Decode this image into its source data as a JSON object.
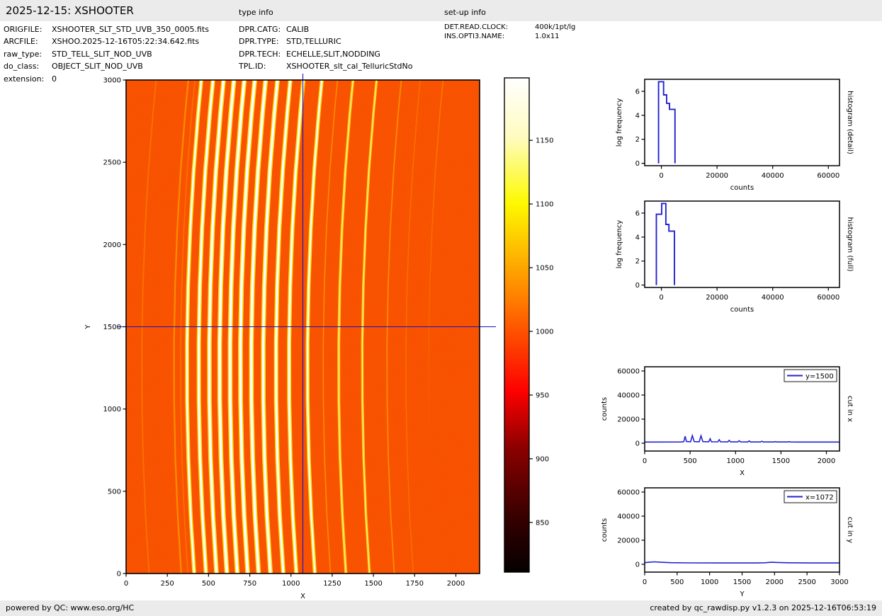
{
  "header": {
    "title": "2025-12-15: XSHOOTER",
    "type_info_heading": "type info",
    "setup_info_heading": "set-up info"
  },
  "file_info": [
    {
      "label": "ORIGFILE:",
      "value": "XSHOOTER_SLT_STD_UVB_350_0005.fits"
    },
    {
      "label": "ARCFILE:",
      "value": "XSHOO.2025-12-16T05:22:34.642.fits"
    },
    {
      "label": "raw_type:",
      "value": "STD_TELL_SLIT_NOD_UVB"
    },
    {
      "label": "do_class:",
      "value": "OBJECT_SLIT_NOD_UVB"
    },
    {
      "label": "extension:",
      "value": "0"
    }
  ],
  "type_info": [
    {
      "label": "DPR.CATG:",
      "value": "CALIB"
    },
    {
      "label": "DPR.TYPE:",
      "value": "STD,TELLURIC"
    },
    {
      "label": "DPR.TECH:",
      "value": "ECHELLE,SLIT,NODDING"
    },
    {
      "label": "TPL.ID:",
      "value": "XSHOOTER_slt_cal_TelluricStdNo"
    }
  ],
  "setup_info": [
    {
      "label": "DET.READ.CLOCK:",
      "value": "400k/1pt/lg"
    },
    {
      "label": "INS.OPTI3.NAME:",
      "value": "1.0x11"
    }
  ],
  "footer": {
    "left": "powered by QC: www.eso.org/HC",
    "right": "created by qc_rawdisp.py v1.2.3 on 2025-12-16T06:53:19"
  },
  "colors": {
    "bar_background": "#ebebeb",
    "curve_blue": "#2323d3",
    "crosshair_blue": "#1414c8",
    "image_background": "#fb4f00",
    "axis_black": "#000000"
  },
  "chart_data": [
    {
      "id": "raw_image",
      "type": "heatmap",
      "xlabel": "X",
      "ylabel": "Y",
      "xlim": [
        0,
        2144
      ],
      "ylim": [
        0,
        3000
      ],
      "xticks": [
        0,
        250,
        500,
        750,
        1000,
        1250,
        1500,
        1750,
        2000
      ],
      "yticks": [
        0,
        500,
        1000,
        1500,
        2000,
        2500,
        3000
      ],
      "colormap": "hot",
      "background_counts": 1000,
      "crosshair": {
        "x": 1072,
        "y": 1500
      },
      "colorbar": {
        "vmin": 811,
        "vmax": 1199,
        "ticks": [
          850,
          900,
          950,
          1000,
          1050,
          1100,
          1150
        ]
      },
      "curvature": {
        "a": 64,
        "vertex_y": 1250
      },
      "orders": [
        {
          "x": 95,
          "w": 2.0,
          "kind": "dim"
        },
        {
          "x": 290,
          "w": 2.2,
          "kind": "faint"
        },
        {
          "x": 330,
          "w": 1.8,
          "kind": "dim"
        },
        {
          "x": 369,
          "w": 2.6,
          "kind": "bright"
        },
        {
          "x": 440,
          "w": 3.2,
          "kind": "bright"
        },
        {
          "x": 504,
          "w": 3.6,
          "kind": "bright"
        },
        {
          "x": 567,
          "w": 3.8,
          "kind": "bright"
        },
        {
          "x": 630,
          "w": 3.8,
          "kind": "bright"
        },
        {
          "x": 693,
          "w": 3.8,
          "kind": "bright"
        },
        {
          "x": 759,
          "w": 3.8,
          "kind": "bright"
        },
        {
          "x": 831,
          "w": 3.6,
          "kind": "bright"
        },
        {
          "x": 909,
          "w": 3.2,
          "kind": "bright"
        },
        {
          "x": 988,
          "w": 3.0,
          "kind": "bright"
        },
        {
          "x": 1100,
          "w": 2.4,
          "kind": "bright"
        },
        {
          "x": 1195,
          "w": 1.6,
          "kind": "faint"
        },
        {
          "x": 1289,
          "w": 2.0,
          "kind": "medium"
        },
        {
          "x": 1432,
          "w": 1.7,
          "kind": "medium"
        },
        {
          "x": 1582,
          "w": 1.8,
          "kind": "faint"
        },
        {
          "x": 1697,
          "w": 1.5,
          "kind": "dim"
        },
        {
          "x": 1835,
          "w": 1.5,
          "kind": "dim-top"
        }
      ]
    },
    {
      "id": "histogram_detail",
      "type": "step",
      "right_label": "histogram (detail)",
      "xlabel": "counts",
      "ylabel": "log frequency",
      "xlim": [
        -6000,
        64000
      ],
      "ylim": [
        -0.2,
        7.0
      ],
      "xticks": [
        0,
        20000,
        40000,
        60000
      ],
      "yticks": [
        0,
        2,
        4,
        6
      ],
      "points": [
        [
          -1000,
          0
        ],
        [
          -1000,
          6.8
        ],
        [
          800,
          6.8
        ],
        [
          800,
          5.7
        ],
        [
          1900,
          5.7
        ],
        [
          1900,
          5.0
        ],
        [
          2900,
          5.0
        ],
        [
          2900,
          4.5
        ],
        [
          4900,
          4.5
        ],
        [
          4900,
          0
        ]
      ]
    },
    {
      "id": "histogram_full",
      "type": "step",
      "right_label": "histogram (full)",
      "xlabel": "counts",
      "ylabel": "log frequency",
      "xlim": [
        -6000,
        64000
      ],
      "ylim": [
        -0.2,
        7.0
      ],
      "xticks": [
        0,
        20000,
        40000,
        60000
      ],
      "yticks": [
        0,
        2,
        4,
        6
      ],
      "points": [
        [
          -1800,
          0
        ],
        [
          -1800,
          5.9
        ],
        [
          100,
          5.9
        ],
        [
          100,
          6.8
        ],
        [
          1600,
          6.8
        ],
        [
          1600,
          5.05
        ],
        [
          2700,
          5.05
        ],
        [
          2700,
          4.5
        ],
        [
          4700,
          4.5
        ],
        [
          4700,
          0
        ]
      ]
    },
    {
      "id": "cut_in_x",
      "type": "line",
      "right_label": "cut in x",
      "xlabel": "X",
      "ylabel": "counts",
      "legend": "y=1500",
      "xlim": [
        0,
        2144
      ],
      "ylim": [
        -6500,
        63500
      ],
      "xticks": [
        0,
        500,
        1000,
        1500,
        2000
      ],
      "yticks": [
        0,
        20000,
        40000,
        60000
      ],
      "points": [
        [
          0,
          1000
        ],
        [
          395,
          1050
        ],
        [
          430,
          1200
        ],
        [
          445,
          5800
        ],
        [
          460,
          1400
        ],
        [
          505,
          1200
        ],
        [
          525,
          6300
        ],
        [
          545,
          1300
        ],
        [
          600,
          1200
        ],
        [
          620,
          6200
        ],
        [
          640,
          1300
        ],
        [
          705,
          1200
        ],
        [
          720,
          3700
        ],
        [
          735,
          1200
        ],
        [
          805,
          1150
        ],
        [
          820,
          2900
        ],
        [
          835,
          1150
        ],
        [
          915,
          1100
        ],
        [
          930,
          2400
        ],
        [
          945,
          1100
        ],
        [
          1025,
          1100
        ],
        [
          1040,
          2100
        ],
        [
          1055,
          1100
        ],
        [
          1135,
          1050
        ],
        [
          1150,
          1900
        ],
        [
          1165,
          1050
        ],
        [
          1275,
          1050
        ],
        [
          1290,
          1600
        ],
        [
          1305,
          1050
        ],
        [
          1425,
          1050
        ],
        [
          1440,
          1350
        ],
        [
          1455,
          1050
        ],
        [
          1575,
          1050
        ],
        [
          1590,
          1250
        ],
        [
          1605,
          1050
        ],
        [
          1700,
          1000
        ],
        [
          2144,
          1000
        ]
      ]
    },
    {
      "id": "cut_in_y",
      "type": "line",
      "right_label": "cut in y",
      "xlabel": "Y",
      "ylabel": "counts",
      "legend": "x=1072",
      "xlim": [
        0,
        3000
      ],
      "ylim": [
        -6500,
        63500
      ],
      "xticks": [
        0,
        500,
        1000,
        1500,
        2000,
        2500,
        3000
      ],
      "yticks": [
        0,
        20000,
        40000,
        60000
      ],
      "points": [
        [
          0,
          1300
        ],
        [
          80,
          1800
        ],
        [
          150,
          2000
        ],
        [
          250,
          1700
        ],
        [
          400,
          1300
        ],
        [
          700,
          1150
        ],
        [
          1200,
          1100
        ],
        [
          1700,
          1100
        ],
        [
          1850,
          1250
        ],
        [
          1950,
          1700
        ],
        [
          2050,
          1500
        ],
        [
          2200,
          1250
        ],
        [
          2600,
          1100
        ],
        [
          3000,
          1100
        ]
      ]
    }
  ]
}
